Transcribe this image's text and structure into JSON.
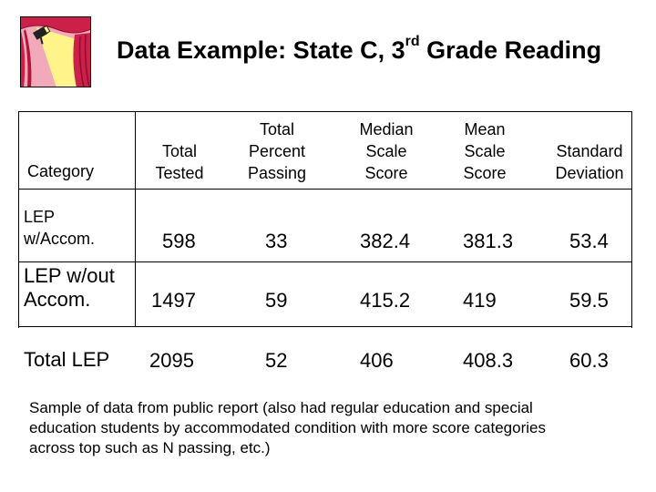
{
  "slide": {
    "title_prefix": "Data Example: State C, 3",
    "title_superscript": "rd",
    "title_suffix": " Grade Reading",
    "clipart_icon": "theater-curtain-spotlight-icon"
  },
  "table": {
    "headers": {
      "category": "Category",
      "total_tested": [
        "Total",
        "Tested"
      ],
      "total_percent_passing": [
        "Total",
        "Percent",
        "Passing"
      ],
      "median_scale_score": [
        "Median",
        "Scale",
        "Score"
      ],
      "mean_scale_score": [
        "Mean",
        "Scale",
        "Score"
      ],
      "standard_deviation": [
        "Standard",
        "Deviation"
      ]
    },
    "rows": [
      {
        "category": [
          "LEP",
          "w/Accom."
        ],
        "total_tested": "598",
        "total_percent_passing": "33",
        "median_scale_score": "382.4",
        "mean_scale_score": "381.3",
        "standard_deviation": "53.4"
      },
      {
        "category": [
          "LEP w/out",
          "Accom."
        ],
        "total_tested": "1497",
        "total_percent_passing": "59",
        "median_scale_score": "415.2",
        "mean_scale_score": "419",
        "standard_deviation": "59.5"
      },
      {
        "category": [
          "Total LEP"
        ],
        "total_tested": "2095",
        "total_percent_passing": "52",
        "median_scale_score": "406",
        "mean_scale_score": "408.3",
        "standard_deviation": "60.3"
      }
    ]
  },
  "note": "Sample of data from public report (also had regular education and special education students by accommodated condition with more score categories across top such as N passing, etc.)",
  "colors": {
    "curtain_red": "#cc1f4a",
    "curtain_pink": "#f2a9b9",
    "spotlight_yellow": "#fff38a"
  }
}
